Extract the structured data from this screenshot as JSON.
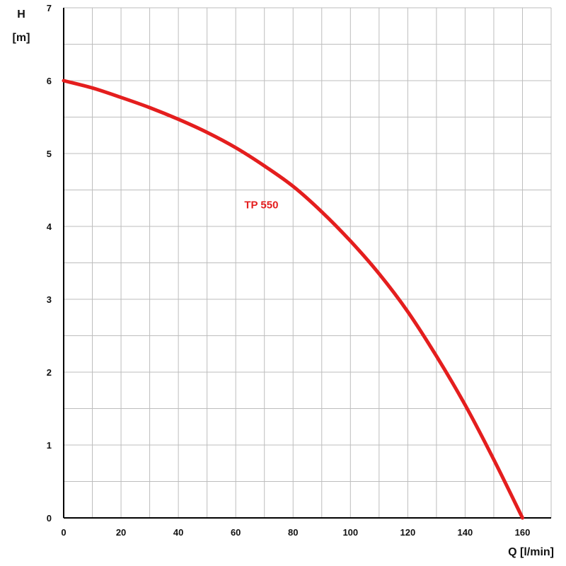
{
  "chart_data": {
    "type": "line",
    "title": "",
    "xlabel": "Q [l/min]",
    "ylabel_line1": "H",
    "ylabel_line2": "[m]",
    "xlim": [
      0,
      170
    ],
    "ylim": [
      0,
      7
    ],
    "x_ticks": [
      0,
      20,
      40,
      60,
      80,
      100,
      120,
      140,
      160
    ],
    "x_tick_labels": [
      "0",
      "20",
      "40",
      "60",
      "80",
      "100",
      "120",
      "140",
      "160"
    ],
    "y_ticks": [
      0,
      1,
      2,
      3,
      4,
      5,
      6,
      7
    ],
    "y_tick_labels": [
      "0",
      "1",
      "2",
      "3",
      "4",
      "5",
      "6",
      "7"
    ],
    "x_minor_step": 10,
    "y_minor_step": 0.5,
    "grid": true,
    "series": [
      {
        "name": "TP 550",
        "color": "#e41e1e",
        "points": [
          [
            0,
            6.0
          ],
          [
            10,
            5.9
          ],
          [
            20,
            5.77
          ],
          [
            30,
            5.63
          ],
          [
            40,
            5.47
          ],
          [
            50,
            5.29
          ],
          [
            60,
            5.08
          ],
          [
            70,
            4.83
          ],
          [
            80,
            4.55
          ],
          [
            90,
            4.2
          ],
          [
            100,
            3.8
          ],
          [
            110,
            3.35
          ],
          [
            120,
            2.83
          ],
          [
            130,
            2.22
          ],
          [
            140,
            1.55
          ],
          [
            150,
            0.8
          ],
          [
            160,
            0.0
          ]
        ]
      }
    ],
    "series_label": "TP 550",
    "series_label_anchor": [
      64,
      4.25
    ]
  }
}
